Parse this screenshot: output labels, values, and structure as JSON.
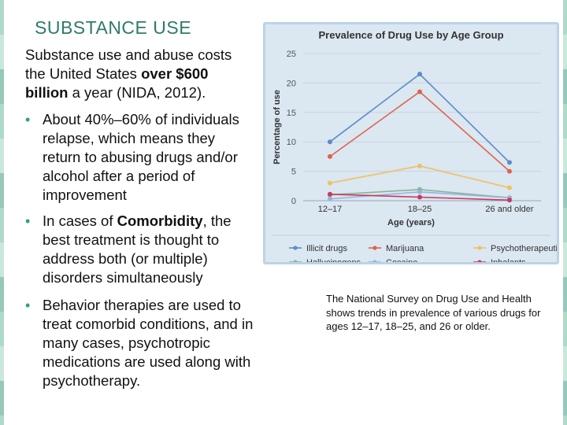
{
  "slide": {
    "title": "SUBSTANCE USE",
    "intro": {
      "part1": "Substance use and abuse costs the United States ",
      "bold": "over $600 billion",
      "part2": " a year (NIDA, 2012)."
    },
    "bullets": [
      {
        "text": "About 40%–60% of individuals relapse, which means they return to abusing drugs and/or alcohol after a period of improvement"
      },
      {
        "pre": "In cases of ",
        "bold": "Comorbidity",
        "post": ", the best treatment is thought to address both (or multiple) disorders simultaneously"
      },
      {
        "text": "Behavior therapies are used to treat comorbid conditions, and in many cases, psychotropic medications are used along with psychotherapy."
      }
    ],
    "bullet_glyph": "•",
    "caption": "The National Survey on Drug Use and Health shows trends in prevalence of various drugs for ages 12–17, 18–25, and 26 or older."
  },
  "chart_data": {
    "type": "line",
    "title": "Prevalence of Drug Use by Age Group",
    "xlabel": "Age (years)",
    "ylabel": "Percentage of use",
    "categories": [
      "12–17",
      "18–25",
      "26 and older"
    ],
    "ylim": [
      0,
      25
    ],
    "yticks": [
      0,
      5,
      10,
      15,
      20,
      25
    ],
    "grid": "horizontal",
    "legend_position": "bottom",
    "series": [
      {
        "name": "Illicit drugs",
        "values": [
          10.0,
          21.5,
          6.5
        ],
        "color": "#5b8cc9"
      },
      {
        "name": "Marijuana",
        "values": [
          7.5,
          18.5,
          5.0
        ],
        "color": "#e0624a"
      },
      {
        "name": "Psychotherapeutics",
        "values": [
          3.0,
          5.9,
          2.2
        ],
        "color": "#f0c061"
      },
      {
        "name": "Hallucinogens",
        "values": [
          1.0,
          1.9,
          0.5
        ],
        "color": "#86b59a"
      },
      {
        "name": "Cocaine",
        "values": [
          0.3,
          1.5,
          0.5
        ],
        "color": "#96b3dd"
      },
      {
        "name": "Inhalants",
        "values": [
          1.1,
          0.6,
          0.1
        ],
        "color": "#c73a5e"
      }
    ]
  }
}
